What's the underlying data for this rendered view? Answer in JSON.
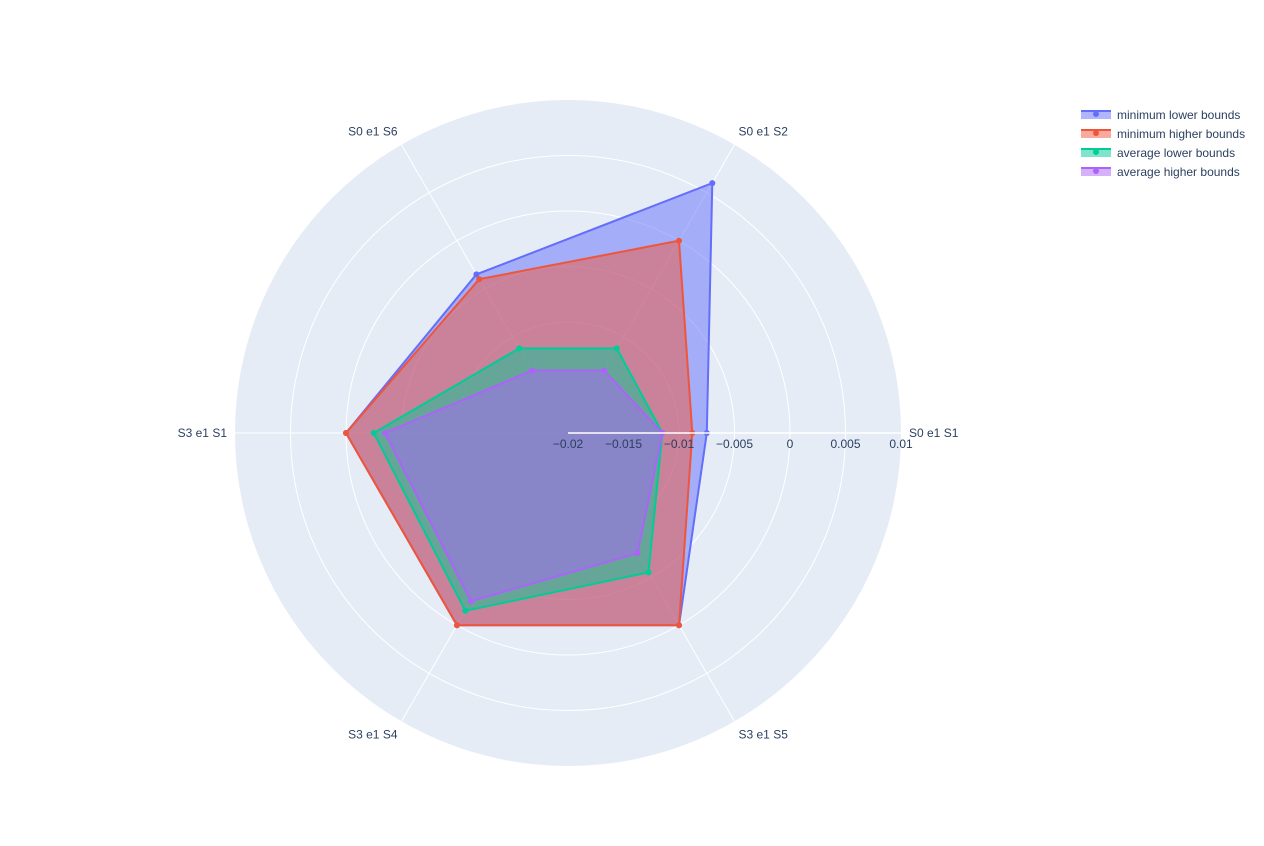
{
  "chart_data": {
    "type": "radar",
    "categories": [
      "S0 e1 S1",
      "S0 e1 S2",
      "S0 e1 S6",
      "S3 e1 S1",
      "S3 e1 S4",
      "S3 e1 S5"
    ],
    "radial_range": [
      -0.02,
      0.01
    ],
    "radial_ticks": [
      "−0.02",
      "−0.015",
      "−0.01",
      "−0.005",
      "0",
      "0.005",
      "0.01"
    ],
    "radial_tick_values": [
      -0.02,
      -0.015,
      -0.01,
      -0.005,
      0,
      0.005,
      0.01
    ],
    "grid": true,
    "legend_position": "top-right",
    "series": [
      {
        "name": "minimum lower bounds",
        "color": "#636efa",
        "values": [
          -0.0075,
          0.006,
          -0.0035,
          -0.0,
          -0.0,
          -0.0
        ]
      },
      {
        "name": "minimum higher bounds",
        "color": "#ef553b",
        "values": [
          -0.0088,
          0.0,
          -0.004,
          0.0,
          0.0,
          0.0
        ]
      },
      {
        "name": "average lower bounds",
        "color": "#00cc96",
        "values": [
          -0.0115,
          -0.0112,
          -0.0112,
          -0.0025,
          -0.0015,
          -0.0055
        ]
      },
      {
        "name": "average higher bounds",
        "color": "#ab63fa",
        "values": [
          -0.0115,
          -0.0135,
          -0.0135,
          -0.0035,
          -0.0025,
          -0.0075
        ]
      }
    ]
  }
}
